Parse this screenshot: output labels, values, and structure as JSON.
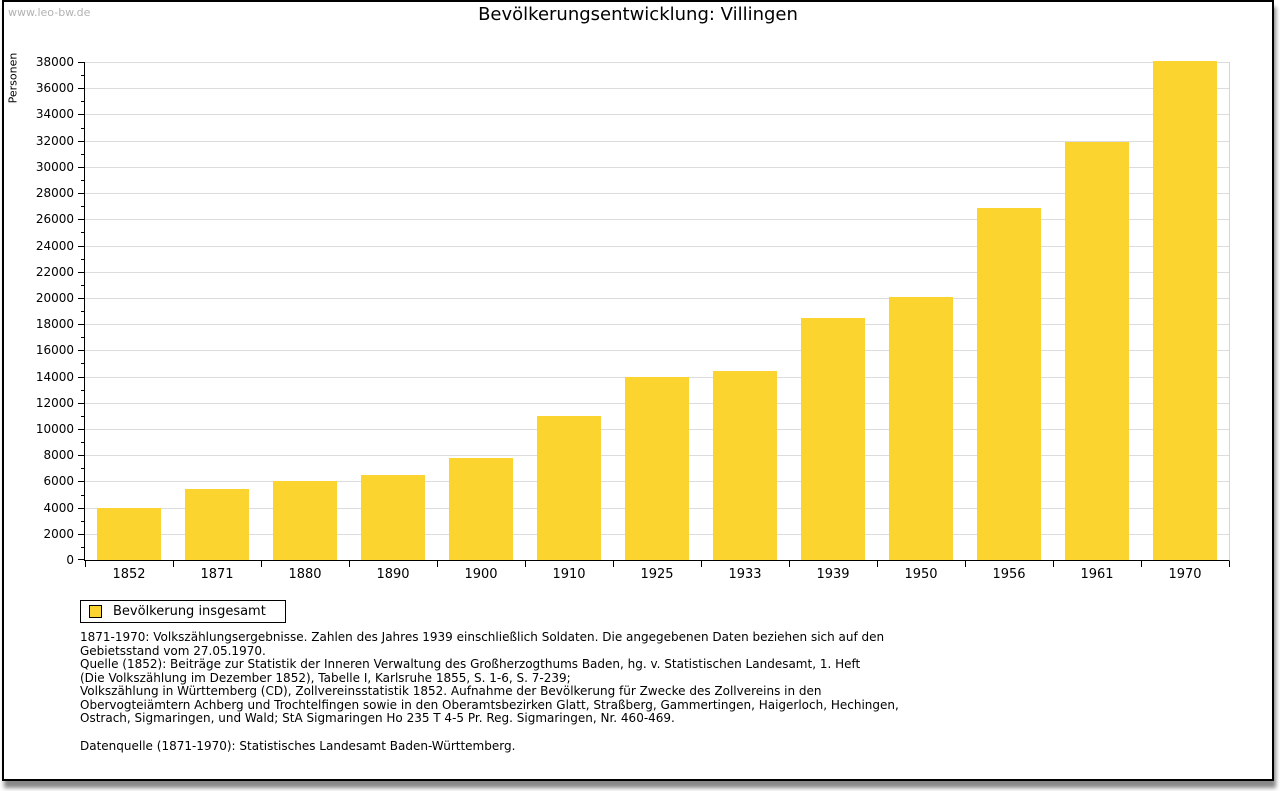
{
  "watermark": "www.leo-bw.de",
  "chart_data": {
    "type": "bar",
    "title": "Bevölkerungsentwicklung: Villingen",
    "xlabel": "",
    "ylabel": "Personen",
    "categories": [
      "1852",
      "1871",
      "1880",
      "1890",
      "1900",
      "1910",
      "1925",
      "1933",
      "1939",
      "1950",
      "1956",
      "1961",
      "1970"
    ],
    "series": [
      {
        "name": "Bevölkerung insgesamt",
        "values": [
          4000,
          5400,
          6000,
          6500,
          7800,
          11000,
          14000,
          14450,
          18500,
          20100,
          26850,
          31900,
          38050
        ]
      }
    ],
    "ylim": [
      0,
      38000
    ],
    "ytick_step": 2000,
    "yminor_step": 1000,
    "grid": true,
    "legend_position": "bottom-left"
  },
  "colors": {
    "bar": "#fcd42f",
    "grid": "#dcdcdc",
    "axis": "#000000",
    "watermark": "#b2b2b2"
  },
  "footnote": {
    "notes": "1871-1970: Volkszählungsergebnisse. Zahlen des Jahres 1939 einschließlich Soldaten. Die angegebenen Daten beziehen sich auf den\nGebietsstand vom 27.05.1970.\nQuelle (1852): Beiträge zur Statistik der Inneren Verwaltung des Großherzogthums Baden, hg. v. Statistischen Landesamt, 1. Heft\n(Die Volkszählung im Dezember 1852), Tabelle I, Karlsruhe 1855, S. 1-6, S. 7-239;\nVolkszählung in Württemberg (CD), Zollvereinsstatistik 1852. Aufnahme der Bevölkerung für Zwecke des Zollvereins in den\nObervogteiämtern Achberg und Trochtelfingen sowie in den Oberamtsbezirken Glatt, Straßberg, Gammertingen, Haigerloch, Hechingen,\nOstrach, Sigmaringen, und Wald; StA Sigmaringen Ho 235 T 4-5 Pr. Reg. Sigmaringen, Nr. 460-469.",
    "datasource": "Datenquelle (1871-1970): Statistisches Landesamt Baden-Württemberg."
  }
}
